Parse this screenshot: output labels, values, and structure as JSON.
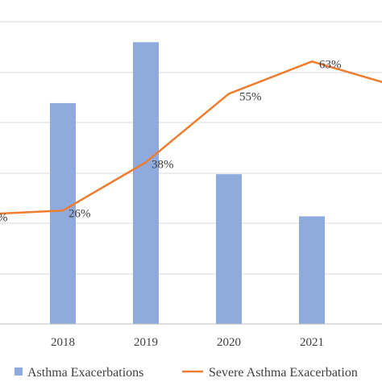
{
  "chart_data": {
    "type": "bar",
    "categories": [
      "",
      "2018",
      "2019",
      "2020",
      "2021",
      ""
    ],
    "series": [
      {
        "name": "Asthma Exacerbations",
        "type": "bar",
        "values": [
          null,
          4.35,
          5.55,
          2.95,
          2.12,
          null
        ]
      },
      {
        "name": "Severe Asthma Exacerbation",
        "type": "line",
        "values": [
          25,
          26,
          38,
          55,
          63,
          57
        ],
        "labels": [
          "%",
          "26%",
          "38%",
          "55%",
          "63%",
          ""
        ]
      }
    ],
    "grid": true,
    "legend_position": "bottom"
  },
  "colors": {
    "bar": "#8faadc",
    "line": "#ed7d31",
    "grid": "#d9d9d9",
    "axis": "#bfbfbf",
    "text": "#404040"
  }
}
